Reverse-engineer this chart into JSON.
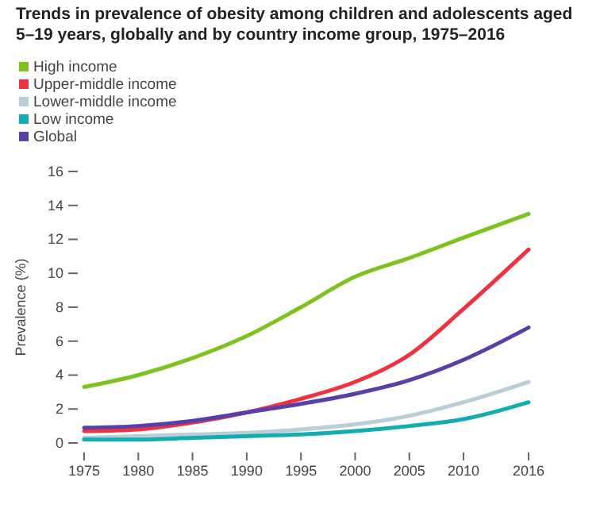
{
  "chart_data": {
    "type": "line",
    "title": "Trends in prevalence of obesity among children and adolescents aged 5–19 years, globally and by country income group, 1975–2016",
    "ylabel": "Prevalence (%)",
    "x": [
      1975,
      1980,
      1985,
      1990,
      1995,
      2000,
      2005,
      2010,
      2016
    ],
    "xlim": [
      1975,
      2016
    ],
    "xticks": [
      1975,
      1980,
      1985,
      1990,
      1995,
      2000,
      2005,
      2010,
      2016
    ],
    "ylim": [
      0,
      16
    ],
    "yticks": [
      0,
      2,
      4,
      6,
      8,
      10,
      12,
      14,
      16
    ],
    "legend": "top left",
    "grid": false,
    "marker": "none",
    "line_style": "solid",
    "series": [
      {
        "name": "High income",
        "color": "#7dc21e",
        "values": [
          3.3,
          4.0,
          5.0,
          6.3,
          8.0,
          9.8,
          10.9,
          12.1,
          13.5
        ]
      },
      {
        "name": "Upper-middle income",
        "color": "#ee3340",
        "values": [
          0.7,
          0.8,
          1.2,
          1.8,
          2.6,
          3.6,
          5.2,
          7.9,
          11.4
        ]
      },
      {
        "name": "Lower-middle income",
        "color": "#b8cfd8",
        "values": [
          0.3,
          0.4,
          0.5,
          0.6,
          0.8,
          1.1,
          1.6,
          2.4,
          3.6
        ]
      },
      {
        "name": "Low income",
        "color": "#13adb0",
        "values": [
          0.2,
          0.2,
          0.3,
          0.4,
          0.5,
          0.7,
          1.0,
          1.4,
          2.4
        ]
      },
      {
        "name": "Global",
        "color": "#5b3fa8",
        "values": [
          0.9,
          1.0,
          1.3,
          1.8,
          2.3,
          2.9,
          3.7,
          4.9,
          6.8
        ]
      }
    ]
  }
}
